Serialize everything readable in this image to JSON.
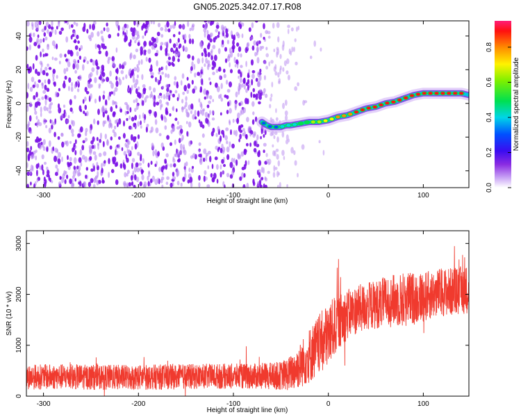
{
  "title": "GN05.2025.342.07.17.R08",
  "colors": {
    "snr_line": "#f03a2e",
    "noise_dots": "#8a2be2",
    "axis": "#000000"
  },
  "chart_data": [
    {
      "type": "heatmap",
      "xlabel": "Height of straight line (km)",
      "ylabel": "Frequency (Hz)",
      "xlim": [
        -318,
        148
      ],
      "ylim": [
        -50,
        49
      ],
      "xticks": [
        -300,
        -200,
        -100,
        0,
        100
      ],
      "xtick_labels": [
        "-300",
        "-200",
        "-100",
        "0",
        "100"
      ],
      "yticks": [
        -40,
        -20,
        0,
        20,
        40
      ],
      "ytick_labels": [
        "-40",
        "-20",
        "0",
        "20",
        "40"
      ],
      "colorbar": {
        "label": "Normalized spectral amplitude",
        "range": [
          0,
          0.95
        ],
        "ticks": [
          0.0,
          0.2,
          0.4,
          0.6,
          0.8
        ],
        "tick_labels": [
          "0.0",
          "0.2",
          "0.4",
          "0.6",
          "0.8"
        ]
      },
      "signal_trace": {
        "height_km": [
          -70,
          -65,
          -60,
          -55,
          -50,
          -45,
          -40,
          -30,
          -20,
          -10,
          0,
          10,
          20,
          30,
          40,
          50,
          60,
          70,
          80,
          90,
          100,
          110,
          120,
          130,
          140,
          148
        ],
        "frequency_hz": [
          -11,
          -13,
          -14,
          -14,
          -14,
          -13,
          -13,
          -12,
          -11,
          -11,
          -10,
          -8,
          -7,
          -5,
          -3,
          -2,
          0,
          1,
          3,
          5,
          6,
          6,
          6,
          6,
          6,
          5
        ]
      }
    },
    {
      "type": "line",
      "xlabel": "Height of straight line (km)",
      "ylabel": "SNR (10 * v/v)",
      "xlim": [
        -318,
        148
      ],
      "ylim": [
        0,
        3250
      ],
      "xticks": [
        -300,
        -200,
        -100,
        0,
        100
      ],
      "xtick_labels": [
        "-300",
        "-200",
        "-100",
        "0",
        "100"
      ],
      "yticks": [
        0,
        1000,
        2000,
        3000
      ],
      "ytick_labels": [
        "0",
        "1000",
        "2000",
        "3000"
      ],
      "series": [
        {
          "name": "SNR",
          "x": [
            -318,
            -280,
            -240,
            -200,
            -160,
            -120,
            -80,
            -50,
            -40,
            -30,
            -20,
            -10,
            0,
            10,
            20,
            30,
            40,
            50,
            60,
            70,
            80,
            90,
            100,
            110,
            120,
            130,
            140,
            148
          ],
          "mean": [
            380,
            380,
            370,
            370,
            380,
            390,
            390,
            400,
            450,
            600,
            800,
            1000,
            1200,
            1450,
            1600,
            1700,
            1750,
            1800,
            1850,
            1880,
            1900,
            1920,
            1950,
            2000,
            2050,
            2050,
            2080,
            2100
          ],
          "spread": [
            250,
            250,
            250,
            250,
            250,
            250,
            250,
            280,
            350,
            450,
            550,
            600,
            650,
            550,
            500,
            480,
            480,
            480,
            500,
            520,
            550,
            520,
            500,
            480,
            480,
            480,
            480,
            480
          ]
        }
      ]
    }
  ]
}
